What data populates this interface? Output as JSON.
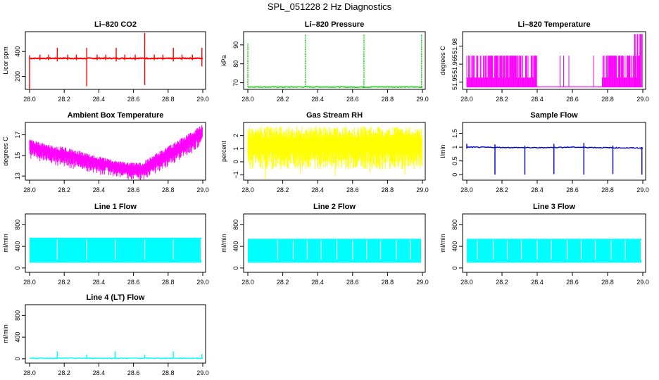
{
  "figure_title": "SPL_051228  2 Hz Diagnostics",
  "colors": {
    "red": "#ff0000",
    "green": "#00cc00",
    "magenta": "#ff00ff",
    "yellow": "#ffff00",
    "blue": "#0000cc",
    "cyan": "#00ffff",
    "axis": "#000000"
  },
  "chart_data": [
    {
      "type": "line",
      "title": "Li–820 CO2",
      "ylabel": "Licor ppm",
      "color": "#ff0000",
      "xlim": [
        28.0,
        29.0
      ],
      "xticks": [
        "28.0",
        "28.2",
        "28.4",
        "28.6",
        "28.8",
        "29.0"
      ],
      "ylim": [
        95,
        560
      ],
      "yticks": [
        {
          "value": 200,
          "label": "200"
        },
        {
          "value": 400,
          "label": "400"
        }
      ],
      "x": [
        28.0,
        28.1,
        28.2,
        28.3,
        28.4,
        28.5,
        28.6,
        28.7,
        28.8,
        28.9,
        29.0
      ],
      "values": [
        345,
        345,
        346,
        344,
        346,
        345,
        346,
        345,
        344,
        346,
        345
      ],
      "spikes": [
        {
          "x": 28.0,
          "low": 100,
          "high": 370
        },
        {
          "x": 28.06,
          "low": 330,
          "high": 375
        },
        {
          "x": 28.11,
          "low": 330,
          "high": 375
        },
        {
          "x": 28.16,
          "low": 320,
          "high": 430
        },
        {
          "x": 28.22,
          "low": 330,
          "high": 375
        },
        {
          "x": 28.27,
          "low": 330,
          "high": 375
        },
        {
          "x": 28.33,
          "low": 120,
          "high": 430
        },
        {
          "x": 28.39,
          "low": 330,
          "high": 375
        },
        {
          "x": 28.44,
          "low": 330,
          "high": 375
        },
        {
          "x": 28.5,
          "low": 320,
          "high": 430
        },
        {
          "x": 28.55,
          "low": 330,
          "high": 375
        },
        {
          "x": 28.61,
          "low": 330,
          "high": 375
        },
        {
          "x": 28.665,
          "low": 130,
          "high": 550
        },
        {
          "x": 28.72,
          "low": 330,
          "high": 375
        },
        {
          "x": 28.77,
          "low": 330,
          "high": 375
        },
        {
          "x": 28.83,
          "low": 320,
          "high": 430
        },
        {
          "x": 28.88,
          "low": 330,
          "high": 375
        },
        {
          "x": 28.94,
          "low": 330,
          "high": 375
        },
        {
          "x": 28.995,
          "low": 280,
          "high": 430
        }
      ]
    },
    {
      "type": "line",
      "title": "Li–820 Pressure",
      "ylabel": "kPa",
      "color": "#00cc00",
      "xlim": [
        28.0,
        29.0
      ],
      "xticks": [
        "28.0",
        "28.2",
        "28.4",
        "28.6",
        "28.8",
        "29.0"
      ],
      "ylim": [
        66.5,
        97
      ],
      "yticks": [
        {
          "value": 70,
          "label": "70"
        },
        {
          "value": 80,
          "label": "80"
        },
        {
          "value": 90,
          "label": "90"
        }
      ],
      "x": [
        28.0,
        28.2,
        28.4,
        28.6,
        28.8,
        29.0
      ],
      "values": [
        67.8,
        67.7,
        67.8,
        67.7,
        67.8,
        67.7
      ],
      "spikes": [
        {
          "x": 28.0,
          "low": 67.8,
          "high": 91
        },
        {
          "x": 28.33,
          "low": 67.8,
          "high": 95.5
        },
        {
          "x": 28.665,
          "low": 67.8,
          "high": 95.5
        },
        {
          "x": 28.995,
          "low": 67.8,
          "high": 95.5
        }
      ]
    },
    {
      "type": "area",
      "title": "Li–820 Temperature",
      "ylabel": "degrees C",
      "color": "#ff00ff",
      "xlim": [
        28.0,
        29.0
      ],
      "xticks": [
        "28.0",
        "28.2",
        "28.4",
        "28.6",
        "28.8",
        "29.0"
      ],
      "ylim": [
        51.944,
        51.992
      ],
      "yticks": [
        {
          "value": 51.95,
          "label": "51.95"
        },
        {
          "value": 51.965,
          "label": "51.965"
        },
        {
          "value": 51.98,
          "label": "51.98"
        }
      ],
      "bands": [
        {
          "x_start": 28.0,
          "x_end": 28.18,
          "low": 51.946,
          "high": 51.972
        },
        {
          "x_start": 28.18,
          "x_end": 28.4,
          "low": 51.946,
          "high": 51.972
        },
        {
          "x_start": 28.77,
          "x_end": 28.98,
          "low": 51.946,
          "high": 51.972
        }
      ],
      "baseline": 51.946,
      "peaks": [
        {
          "x": 28.955,
          "high": 51.99
        },
        {
          "x": 28.97,
          "high": 51.99
        },
        {
          "x": 28.985,
          "high": 51.99
        },
        {
          "x": 28.995,
          "high": 51.99
        }
      ]
    },
    {
      "type": "area",
      "title": "Ambient Box Temperature",
      "ylabel": "degrees C",
      "color": "#ff00ff",
      "xlim": [
        28.0,
        29.0
      ],
      "xticks": [
        "28.0",
        "28.2",
        "28.4",
        "28.6",
        "28.8",
        "29.0"
      ],
      "ylim": [
        12.6,
        18.2
      ],
      "yticks": [
        {
          "value": 13,
          "label": "13"
        },
        {
          "value": 15,
          "label": "15"
        },
        {
          "value": 17,
          "label": "17"
        }
      ],
      "x": [
        28.0,
        28.1,
        28.2,
        28.3,
        28.4,
        28.5,
        28.6,
        28.65,
        28.7,
        28.8,
        28.9,
        29.0
      ],
      "upper": [
        16.6,
        16.1,
        15.8,
        15.4,
        14.9,
        14.5,
        14.3,
        14.3,
        14.9,
        15.9,
        16.9,
        18.0
      ],
      "lower": [
        15.2,
        14.6,
        14.3,
        13.9,
        13.6,
        13.3,
        13.0,
        13.0,
        13.4,
        14.3,
        15.3,
        16.4
      ]
    },
    {
      "type": "area",
      "title": "Gas Stream RH",
      "ylabel": "percent",
      "color": "#ffff00",
      "xlim": [
        28.0,
        29.0
      ],
      "xticks": [
        "28.0",
        "28.2",
        "28.4",
        "28.6",
        "28.8",
        "29.0"
      ],
      "ylim": [
        -1.4,
        3.0
      ],
      "yticks": [
        {
          "value": -1,
          "label": "−1"
        },
        {
          "value": 0,
          "label": "0"
        },
        {
          "value": 1,
          "label": "1"
        },
        {
          "value": 2,
          "label": "2"
        }
      ],
      "upper_value": 2.7,
      "lower_value": -0.6,
      "dips": [
        -1.3,
        -0.9,
        -1.1,
        -0.8,
        -1.0
      ]
    },
    {
      "type": "line",
      "title": "Sample Flow",
      "ylabel": "l/min",
      "color": "#0000cc",
      "xlim": [
        28.0,
        29.0
      ],
      "xticks": [
        "28.0",
        "28.2",
        "28.4",
        "28.6",
        "28.8",
        "29.0"
      ],
      "ylim": [
        -0.2,
        1.9
      ],
      "yticks": [
        {
          "value": 0,
          "label": "0"
        },
        {
          "value": 0.5,
          "label": "0.5"
        },
        {
          "value": 1,
          "label": "1"
        },
        {
          "value": 1.5,
          "label": "1.5"
        }
      ],
      "x": [
        28.0,
        28.2,
        28.4,
        28.6,
        28.8,
        29.0
      ],
      "values": [
        1.0,
        0.99,
        0.98,
        1.0,
        0.98,
        0.97
      ],
      "spikes": [
        {
          "x": 28.0,
          "low": 0.95,
          "high": 1.12
        },
        {
          "x": 28.16,
          "low": 0.0,
          "high": 1.1
        },
        {
          "x": 28.33,
          "low": 0.0,
          "high": 1.05
        },
        {
          "x": 28.495,
          "low": 0.02,
          "high": 1.12
        },
        {
          "x": 28.665,
          "low": 0.0,
          "high": 1.15
        },
        {
          "x": 28.83,
          "low": 0.02,
          "high": 1.06
        },
        {
          "x": 28.995,
          "low": 0.0,
          "high": 1.0
        }
      ]
    },
    {
      "type": "area",
      "title": "Line 1 Flow",
      "ylabel": "ml/min",
      "color": "#00ffff",
      "xlim": [
        28.0,
        29.0
      ],
      "xticks": [
        "28.0",
        "28.2",
        "28.4",
        "28.6",
        "28.8",
        "29.0"
      ],
      "ylim": [
        -80,
        1000
      ],
      "yticks": [
        {
          "value": 0,
          "label": "0"
        },
        {
          "value": 400,
          "label": "400"
        },
        {
          "value": 800,
          "label": "800"
        }
      ],
      "high": 560,
      "low": 100,
      "gaps": [
        28.16,
        28.33,
        28.495,
        28.665,
        28.83,
        28.99
      ]
    },
    {
      "type": "area",
      "title": "Line 2 Flow",
      "ylabel": "ml/min",
      "color": "#00ffff",
      "xlim": [
        28.0,
        29.0
      ],
      "xticks": [
        "28.0",
        "28.2",
        "28.4",
        "28.6",
        "28.8",
        "29.0"
      ],
      "ylim": [
        -80,
        1000
      ],
      "yticks": [
        {
          "value": 0,
          "label": "0"
        },
        {
          "value": 400,
          "label": "400"
        },
        {
          "value": 800,
          "label": "800"
        }
      ],
      "high": 540,
      "low": 100,
      "gaps": [
        28.17,
        28.26,
        28.34,
        28.42,
        28.51,
        28.6,
        28.68,
        28.76,
        28.85,
        28.93
      ]
    },
    {
      "type": "area",
      "title": "Line 3 Flow",
      "ylabel": "ml/min",
      "color": "#00ffff",
      "xlim": [
        28.0,
        29.0
      ],
      "xticks": [
        "28.0",
        "28.2",
        "28.4",
        "28.6",
        "28.8",
        "29.0"
      ],
      "ylim": [
        -80,
        1000
      ],
      "yticks": [
        {
          "value": 0,
          "label": "0"
        },
        {
          "value": 400,
          "label": "400"
        },
        {
          "value": 800,
          "label": "800"
        }
      ],
      "high": 540,
      "low": 100,
      "gaps": [
        28.06,
        28.15,
        28.23,
        28.31,
        28.4,
        28.48,
        28.57,
        28.65,
        28.73,
        28.82,
        28.9,
        28.99
      ]
    },
    {
      "type": "line",
      "title": "Line 4 (LT) Flow",
      "ylabel": "ml/min",
      "color": "#00ffff",
      "xlim": [
        28.0,
        29.0
      ],
      "xticks": [
        "28.0",
        "28.2",
        "28.4",
        "28.6",
        "28.8",
        "29.0"
      ],
      "ylim": [
        -80,
        1000
      ],
      "yticks": [
        {
          "value": 0,
          "label": "0"
        },
        {
          "value": 400,
          "label": "400"
        },
        {
          "value": 800,
          "label": "800"
        }
      ],
      "x": [
        28.0,
        28.5,
        29.0
      ],
      "values": [
        10,
        10,
        10
      ],
      "spikes": [
        {
          "x": 28.16,
          "low": 10,
          "high": 140
        },
        {
          "x": 28.33,
          "low": 10,
          "high": 80
        },
        {
          "x": 28.495,
          "low": 10,
          "high": 140
        },
        {
          "x": 28.665,
          "low": 10,
          "high": 80
        },
        {
          "x": 28.83,
          "low": 10,
          "high": 140
        },
        {
          "x": 28.995,
          "low": 10,
          "high": 90
        }
      ]
    }
  ]
}
